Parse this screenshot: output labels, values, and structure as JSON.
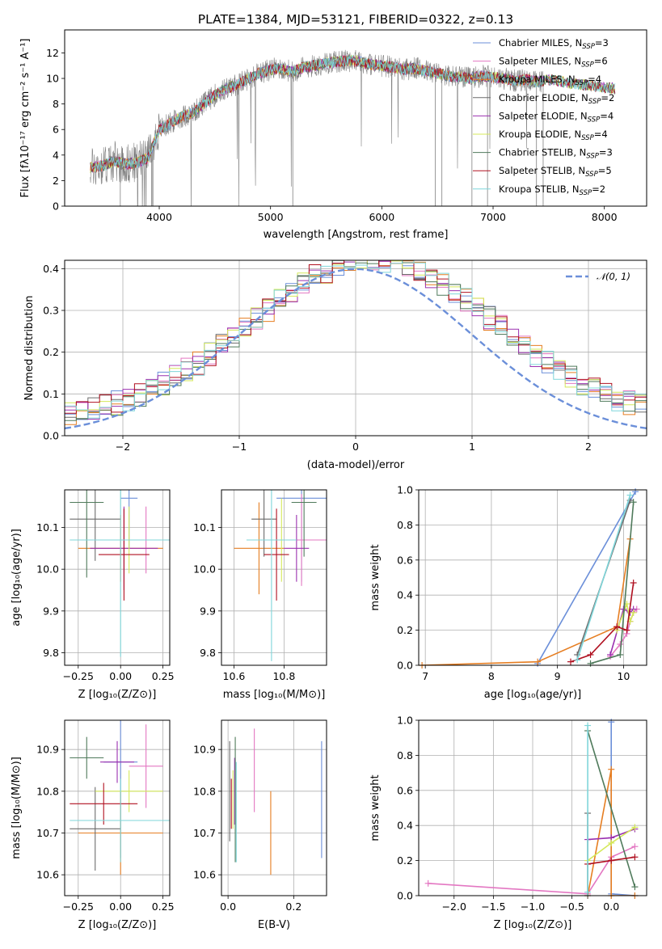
{
  "figure_title": "PLATE=1384, MJD=53121, FIBERID=0322, z=0.13",
  "colors": {
    "chabrier_miles": "#6b8fd9",
    "salpeter_miles": "#e377c2",
    "kroupa_miles": "#e67e22",
    "chabrier_elodie": "#6b6b6b",
    "salpeter_elodie": "#9b30b0",
    "kroupa_elodie": "#d4e85a",
    "chabrier_stelib": "#4f7a5b",
    "salpeter_stelib": "#b01020",
    "kroupa_stelib": "#7fd6da",
    "data": "#808080"
  },
  "chart_data": [
    {
      "type": "line",
      "name": "spectrum",
      "xlabel": "wavelength [Angstrom, rest frame]",
      "ylabel": "Flux [fλ10⁻¹⁷ erg cm⁻² s⁻¹ A⁻¹]",
      "xlim": [
        3150,
        8380
      ],
      "ylim": [
        0,
        13.8
      ],
      "xticks": [
        "4000",
        "5000",
        "6000",
        "7000",
        "8000"
      ],
      "yticks": [
        "0",
        "2",
        "4",
        "6",
        "8",
        "10",
        "12"
      ],
      "legend_position": "right",
      "legend": [
        {
          "label": "Chabrier MILES, N",
          "sub": "SSP",
          "n": "=3",
          "color": "chabrier_miles"
        },
        {
          "label": "Salpeter MILES, N",
          "sub": "SSP",
          "n": "=6",
          "color": "salpeter_miles"
        },
        {
          "label": "Kroupa MILES, N",
          "sub": "SSP",
          "n": "=4",
          "color": "kroupa_miles"
        },
        {
          "label": "Chabrier ELODIE, N",
          "sub": "SSP",
          "n": "=2",
          "color": "chabrier_elodie"
        },
        {
          "label": "Salpeter ELODIE, N",
          "sub": "SSP",
          "n": "=4",
          "color": "salpeter_elodie"
        },
        {
          "label": "Kroupa ELODIE, N",
          "sub": "SSP",
          "n": "=4",
          "color": "kroupa_elodie"
        },
        {
          "label": "Chabrier STELIB, N",
          "sub": "SSP",
          "n": "=3",
          "color": "chabrier_stelib"
        },
        {
          "label": "Salpeter STELIB, N",
          "sub": "SSP",
          "n": "=5",
          "color": "salpeter_stelib"
        },
        {
          "label": "Kroupa STELIB, N",
          "sub": "SSP",
          "n": "=2",
          "color": "kroupa_stelib"
        }
      ],
      "continuum": [
        [
          3380,
          3.0
        ],
        [
          3500,
          3.2
        ],
        [
          3600,
          3.5
        ],
        [
          3700,
          3.3
        ],
        [
          3800,
          3.4
        ],
        [
          3900,
          3.8
        ],
        [
          4000,
          6.0
        ],
        [
          4100,
          6.5
        ],
        [
          4200,
          7.0
        ],
        [
          4300,
          7.3
        ],
        [
          4400,
          8.0
        ],
        [
          4500,
          8.7
        ],
        [
          4600,
          9.2
        ],
        [
          4700,
          9.5
        ],
        [
          4800,
          10.0
        ],
        [
          4900,
          10.4
        ],
        [
          5000,
          10.7
        ],
        [
          5100,
          10.8
        ],
        [
          5200,
          10.5
        ],
        [
          5300,
          10.9
        ],
        [
          5400,
          11.0
        ],
        [
          5500,
          11.2
        ],
        [
          5600,
          11.3
        ],
        [
          5700,
          11.4
        ],
        [
          5800,
          11.3
        ],
        [
          5900,
          11.1
        ],
        [
          6000,
          11.0
        ],
        [
          6100,
          10.9
        ],
        [
          6200,
          10.7
        ],
        [
          6300,
          10.8
        ],
        [
          6400,
          10.6
        ],
        [
          6500,
          10.4
        ],
        [
          6600,
          10.2
        ],
        [
          6700,
          10.1
        ],
        [
          6800,
          10.0
        ],
        [
          6900,
          10.2
        ],
        [
          7000,
          10.1
        ],
        [
          7100,
          10.0
        ],
        [
          7200,
          9.8
        ],
        [
          7300,
          9.9
        ],
        [
          7400,
          9.7
        ],
        [
          7500,
          9.9
        ],
        [
          7600,
          9.8
        ],
        [
          7700,
          9.6
        ],
        [
          7800,
          9.5
        ],
        [
          7900,
          9.4
        ],
        [
          8000,
          9.3
        ],
        [
          8100,
          9.2
        ]
      ]
    },
    {
      "type": "bar",
      "name": "residual-histogram",
      "xlabel": "(data-model)/error",
      "ylabel": "Normed distribution",
      "xlim": [
        -2.5,
        2.5
      ],
      "ylim": [
        0,
        0.42
      ],
      "xticks": [
        "−2",
        "−1",
        "0",
        "1",
        "2"
      ],
      "yticks": [
        "0.0",
        "0.1",
        "0.2",
        "0.3",
        "0.4"
      ],
      "legend_position": "top-right",
      "legend": [
        {
          "label": "𝒩(0, 1)",
          "color": "chabrier_miles",
          "style": "dashed"
        }
      ],
      "bin_width": 0.1
    },
    {
      "type": "scatter",
      "name": "Z-age",
      "xlabel": "Z [log₁₀(Z/Z⊙)]",
      "ylabel": "age  [log₁₀(age/yr)]",
      "xlim": [
        -0.33,
        0.29
      ],
      "ylim": [
        9.77,
        10.19
      ],
      "xticks": [
        "−0.25",
        "0.00",
        "0.25"
      ],
      "yticks": [
        "9.8",
        "9.9",
        "10.0",
        "10.1"
      ],
      "points": [
        {
          "x": 0.05,
          "y": 10.17,
          "xe": 0.05,
          "ye": 0.12,
          "color": "chabrier_miles"
        },
        {
          "x": 0.15,
          "y": 10.07,
          "xe": 0.1,
          "ye": 0.08,
          "color": "salpeter_miles"
        },
        {
          "x": 0.0,
          "y": 10.05,
          "xe": 0.25,
          "ye": 0.08,
          "color": "kroupa_miles"
        },
        {
          "x": -0.15,
          "y": 10.12,
          "xe": 0.15,
          "ye": 0.1,
          "color": "chabrier_elodie"
        },
        {
          "x": 0.02,
          "y": 10.05,
          "xe": 0.2,
          "ye": 0.1,
          "color": "salpeter_elodie"
        },
        {
          "x": 0.05,
          "y": 10.07,
          "xe": 0.2,
          "ye": 0.08,
          "color": "kroupa_elodie"
        },
        {
          "x": -0.2,
          "y": 10.16,
          "xe": 0.1,
          "ye": 0.18,
          "color": "chabrier_stelib"
        },
        {
          "x": 0.02,
          "y": 10.035,
          "xe": 0.15,
          "ye": 0.11,
          "color": "salpeter_stelib"
        },
        {
          "x": 0.0,
          "y": 10.07,
          "xe": 0.3,
          "ye": 0.28,
          "color": "kroupa_stelib"
        }
      ]
    },
    {
      "type": "scatter",
      "name": "mass-age",
      "xlabel": "mass [log₁₀(M/M⊙)]",
      "xlim": [
        10.55,
        10.97
      ],
      "ylim": [
        9.77,
        10.19
      ],
      "xticks": [
        "10.6",
        "10.8"
      ],
      "yticks": [
        "9.8",
        "9.9",
        "10.0",
        "10.1"
      ],
      "points": [
        {
          "x": 10.87,
          "y": 10.17,
          "xe": 0.1,
          "ye": 0.2,
          "color": "chabrier_miles"
        },
        {
          "x": 10.87,
          "y": 10.07,
          "xe": 0.1,
          "ye": 0.11,
          "color": "salpeter_miles"
        },
        {
          "x": 10.7,
          "y": 10.05,
          "xe": 0.1,
          "ye": 0.11,
          "color": "kroupa_miles"
        },
        {
          "x": 10.72,
          "y": 10.12,
          "xe": 0.05,
          "ye": 0.09,
          "color": "chabrier_elodie"
        },
        {
          "x": 10.85,
          "y": 10.05,
          "xe": 0.05,
          "ye": 0.08,
          "color": "salpeter_elodie"
        },
        {
          "x": 10.79,
          "y": 10.07,
          "xe": 0.05,
          "ye": 0.1,
          "color": "kroupa_elodie"
        },
        {
          "x": 10.88,
          "y": 10.16,
          "xe": 0.05,
          "ye": 0.13,
          "color": "chabrier_stelib"
        },
        {
          "x": 10.77,
          "y": 10.035,
          "xe": 0.05,
          "ye": 0.11,
          "color": "salpeter_stelib"
        },
        {
          "x": 10.75,
          "y": 10.07,
          "xe": 0.1,
          "ye": 0.29,
          "color": "kroupa_stelib"
        }
      ]
    },
    {
      "type": "line",
      "name": "age-massweight",
      "xlabel": "age  [log₁₀(age/yr)]",
      "ylabel": "mass weight",
      "xlim": [
        6.9,
        10.35
      ],
      "ylim": [
        0,
        1.0
      ],
      "xticks": [
        "7",
        "8",
        "9",
        "10"
      ],
      "yticks": [
        "0.0",
        "0.2",
        "0.4",
        "0.6",
        "0.8",
        "1.0"
      ],
      "series": [
        {
          "color": "chabrier_miles",
          "x": [
            8.7,
            10.18
          ],
          "y": [
            0.01,
            0.99
          ]
        },
        {
          "color": "salpeter_miles",
          "x": [
            9.8,
            9.95,
            10.05,
            10.1,
            10.15,
            10.2
          ],
          "y": [
            0.05,
            0.12,
            0.18,
            0.25,
            0.3,
            0.32
          ]
        },
        {
          "color": "kroupa_miles",
          "x": [
            6.95,
            8.7,
            9.9,
            10.1
          ],
          "y": [
            0.0,
            0.02,
            0.22,
            0.72
          ]
        },
        {
          "color": "chabrier_elodie",
          "x": [
            9.3,
            10.1
          ],
          "y": [
            0.06,
            0.94
          ]
        },
        {
          "color": "salpeter_elodie",
          "x": [
            9.8,
            10.0,
            10.1,
            10.15
          ],
          "y": [
            0.06,
            0.32,
            0.3,
            0.32
          ]
        },
        {
          "color": "kroupa_elodie",
          "x": [
            9.9,
            10.05,
            10.1,
            10.15
          ],
          "y": [
            0.2,
            0.35,
            0.25,
            0.3
          ]
        },
        {
          "color": "chabrier_stelib",
          "x": [
            9.5,
            9.95,
            10.15
          ],
          "y": [
            0.01,
            0.06,
            0.93
          ]
        },
        {
          "color": "salpeter_stelib",
          "x": [
            9.2,
            9.5,
            9.9,
            10.05,
            10.15
          ],
          "y": [
            0.02,
            0.06,
            0.22,
            0.2,
            0.47
          ]
        },
        {
          "color": "kroupa_stelib",
          "x": [
            9.3,
            10.1
          ],
          "y": [
            0.03,
            0.97
          ]
        }
      ]
    },
    {
      "type": "scatter",
      "name": "Z-mass",
      "xlabel": "Z [log₁₀(Z/Z⊙)]",
      "ylabel": "mass [log₁₀(M/M⊙)]",
      "xlim": [
        -0.33,
        0.29
      ],
      "ylim": [
        10.55,
        10.97
      ],
      "xticks": [
        "−0.25",
        "0.00",
        "0.25"
      ],
      "yticks": [
        "10.6",
        "10.7",
        "10.8",
        "10.9"
      ],
      "points": [
        {
          "x": 0.0,
          "y": 10.87,
          "xe": 0.1,
          "ye": 0.23,
          "color": "chabrier_miles"
        },
        {
          "x": 0.15,
          "y": 10.86,
          "xe": 0.1,
          "ye": 0.1,
          "color": "salpeter_miles"
        },
        {
          "x": 0.0,
          "y": 10.7,
          "xe": 0.25,
          "ye": 0.1,
          "color": "kroupa_miles"
        },
        {
          "x": -0.15,
          "y": 10.71,
          "xe": 0.15,
          "ye": 0.1,
          "color": "chabrier_elodie"
        },
        {
          "x": -0.02,
          "y": 10.87,
          "xe": 0.1,
          "ye": 0.05,
          "color": "salpeter_elodie"
        },
        {
          "x": 0.05,
          "y": 10.8,
          "xe": 0.2,
          "ye": 0.05,
          "color": "kroupa_elodie"
        },
        {
          "x": -0.2,
          "y": 10.88,
          "xe": 0.1,
          "ye": 0.05,
          "color": "chabrier_stelib"
        },
        {
          "x": -0.1,
          "y": 10.77,
          "xe": 0.2,
          "ye": 0.05,
          "color": "salpeter_stelib"
        },
        {
          "x": 0.0,
          "y": 10.73,
          "xe": 0.3,
          "ye": 0.1,
          "color": "kroupa_stelib"
        }
      ]
    },
    {
      "type": "scatter",
      "name": "ebv-mass",
      "xlabel": "E(B-V)",
      "xlim": [
        -0.02,
        0.3
      ],
      "ylim": [
        10.55,
        10.97
      ],
      "xticks": [
        "0.0",
        "0.2"
      ],
      "yticks": [
        "10.6",
        "10.7",
        "10.8",
        "10.9"
      ],
      "points": [
        {
          "x": 0.285,
          "y": 10.78,
          "ye": 0.14,
          "color": "chabrier_miles"
        },
        {
          "x": 0.08,
          "y": 10.85,
          "ye": 0.1,
          "color": "salpeter_miles"
        },
        {
          "x": 0.13,
          "y": 10.7,
          "ye": 0.1,
          "color": "kroupa_miles"
        },
        {
          "x": 0.005,
          "y": 10.8,
          "ye": 0.12,
          "color": "chabrier_elodie"
        },
        {
          "x": 0.02,
          "y": 10.8,
          "ye": 0.08,
          "color": "salpeter_elodie"
        },
        {
          "x": 0.015,
          "y": 10.78,
          "ye": 0.07,
          "color": "kroupa_elodie"
        },
        {
          "x": 0.022,
          "y": 10.78,
          "ye": 0.15,
          "color": "chabrier_stelib"
        },
        {
          "x": 0.01,
          "y": 10.77,
          "ye": 0.06,
          "color": "salpeter_stelib"
        },
        {
          "x": 0.025,
          "y": 10.75,
          "ye": 0.12,
          "color": "kroupa_stelib"
        }
      ]
    },
    {
      "type": "line",
      "name": "Z-massweight",
      "xlabel": "Z [log₁₀(Z/Z⊙)]",
      "ylabel": "mass weight",
      "xlim": [
        -2.45,
        0.45
      ],
      "ylim": [
        0,
        1.0
      ],
      "xticks": [
        "−2.0",
        "−1.5",
        "−1.0",
        "−0.5",
        "0.0"
      ],
      "yticks": [
        "0.0",
        "0.2",
        "0.4",
        "0.6",
        "0.8",
        "1.0"
      ],
      "series": [
        {
          "color": "chabrier_miles",
          "x": [
            0.0,
            0.0,
            0.3
          ],
          "y": [
            0.99,
            0.01,
            0.0
          ]
        },
        {
          "color": "salpeter_miles",
          "x": [
            -2.33,
            -0.3,
            0.0,
            0.3
          ],
          "y": [
            0.07,
            0.01,
            0.22,
            0.28
          ]
        },
        {
          "color": "kroupa_miles",
          "x": [
            -0.3,
            0.0,
            0.0,
            0.3
          ],
          "y": [
            0.0,
            0.72,
            0.0,
            0.0
          ]
        },
        {
          "color": "chabrier_elodie",
          "x": [
            -0.3,
            -0.3
          ],
          "y": [
            0.47,
            0.0
          ]
        },
        {
          "color": "salpeter_elodie",
          "x": [
            -0.3,
            0.0,
            0.3
          ],
          "y": [
            0.32,
            0.33,
            0.38
          ]
        },
        {
          "color": "kroupa_elodie",
          "x": [
            -0.3,
            0.0,
            0.3
          ],
          "y": [
            0.2,
            0.3,
            0.39
          ]
        },
        {
          "color": "chabrier_stelib",
          "x": [
            -0.3,
            0.3
          ],
          "y": [
            0.94,
            0.05
          ]
        },
        {
          "color": "salpeter_stelib",
          "x": [
            -0.3,
            0.0,
            0.3
          ],
          "y": [
            0.18,
            0.2,
            0.22
          ]
        },
        {
          "color": "kroupa_stelib",
          "x": [
            -0.3,
            -0.3
          ],
          "y": [
            0.97,
            0.02
          ]
        }
      ]
    }
  ]
}
